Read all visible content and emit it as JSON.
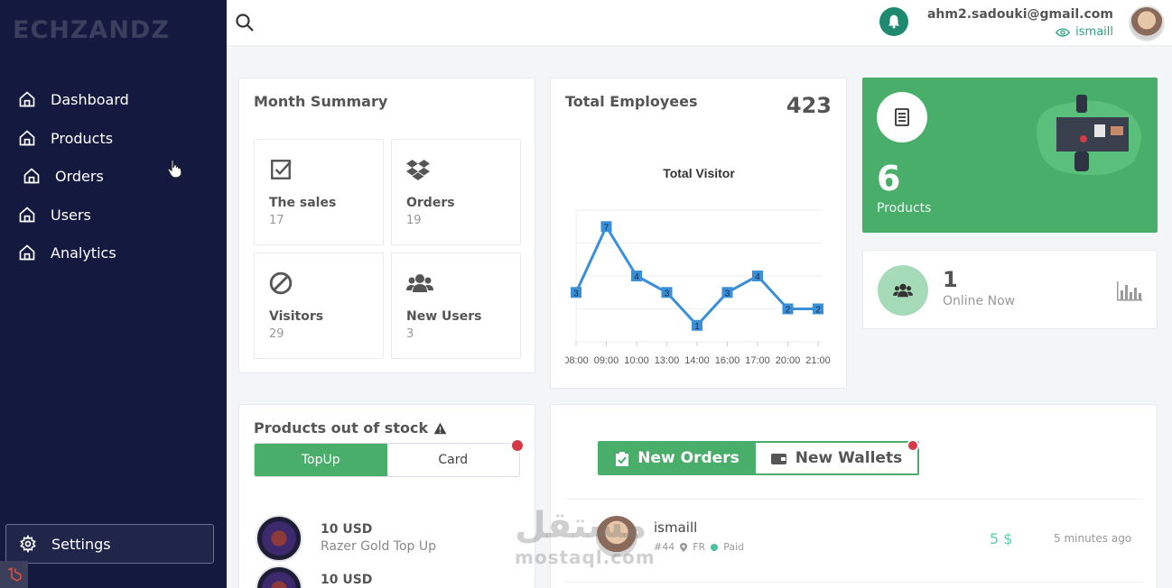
{
  "sidebar": {
    "logo": "ECHZANDZ",
    "items": [
      {
        "label": "Dashboard",
        "icon": "home-icon"
      },
      {
        "label": "Products",
        "icon": "home-icon"
      },
      {
        "label": "Orders",
        "icon": "home-icon"
      },
      {
        "label": "Users",
        "icon": "home-icon"
      },
      {
        "label": "Analytics",
        "icon": "home-icon"
      }
    ],
    "settings_label": "Settings"
  },
  "topbar": {
    "email": "ahm2.sadouki@gmail.com",
    "username": "ismaill"
  },
  "month_summary": {
    "title": "Month Summary",
    "boxes": [
      {
        "label": "The sales",
        "value": "17",
        "icon": "checkbox-icon"
      },
      {
        "label": "Orders",
        "value": "19",
        "icon": "dropbox-icon"
      },
      {
        "label": "Visitors",
        "value": "29",
        "icon": "ban-icon"
      },
      {
        "label": "New Users",
        "value": "3",
        "icon": "users-icon"
      }
    ]
  },
  "employees": {
    "title": "Total Employees",
    "count": "423"
  },
  "chart_data": {
    "type": "line",
    "title": "Total Visitor",
    "categories": [
      "08:00",
      "09:00",
      "10:00",
      "13:00",
      "14:00",
      "16:00",
      "17:00",
      "20:00",
      "21:00"
    ],
    "values": [
      3,
      7,
      4,
      3,
      1,
      3,
      4,
      2,
      2
    ],
    "ylim": [
      0,
      8
    ],
    "grid": true,
    "color": "#3a8fd9"
  },
  "products_card": {
    "count": "6",
    "label": "Products",
    "color": "#48ae6a"
  },
  "online": {
    "count": "1",
    "label": "Online Now"
  },
  "out_of_stock": {
    "title": "Products out of stock",
    "tabs": [
      "TopUp",
      "Card"
    ],
    "items": [
      {
        "price": "10 USD",
        "name": "Razer Gold Top Up"
      },
      {
        "price": "10 USD",
        "name": ""
      }
    ]
  },
  "orders_panel": {
    "tabs": [
      "New Orders",
      "New Wallets"
    ],
    "order": {
      "name": "ismaill",
      "id": "#44",
      "country": "FR",
      "status": "Paid",
      "amount": "5 $",
      "time": "5 minutes ago"
    }
  },
  "watermark": {
    "arabic": "مستقل",
    "latin": "mostaql.com"
  }
}
